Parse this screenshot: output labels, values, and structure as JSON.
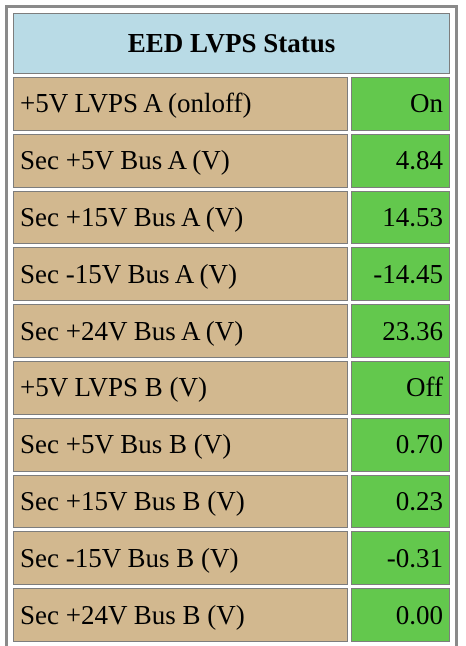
{
  "title": "EED LVPS Status",
  "colors": {
    "title_bg": "#b9dbe6",
    "label_bg": "#d2b88f",
    "value_bg": "#63c84d",
    "border": "#7d7d7d"
  },
  "rows": [
    {
      "label": "+5V LVPS A (onloff)",
      "value": "On"
    },
    {
      "label": "Sec +5V Bus A (V)",
      "value": "4.84"
    },
    {
      "label": "Sec +15V Bus A (V)",
      "value": "14.53"
    },
    {
      "label": "Sec -15V Bus A (V)",
      "value": "-14.45"
    },
    {
      "label": "Sec +24V Bus A (V)",
      "value": "23.36"
    },
    {
      "label": "+5V LVPS B (V)",
      "value": "Off"
    },
    {
      "label": "Sec +5V Bus B (V)",
      "value": "0.70"
    },
    {
      "label": "Sec +15V Bus B (V)",
      "value": "0.23"
    },
    {
      "label": "Sec -15V Bus B (V)",
      "value": "-0.31"
    },
    {
      "label": "Sec +24V Bus B (V)",
      "value": "0.00"
    }
  ]
}
